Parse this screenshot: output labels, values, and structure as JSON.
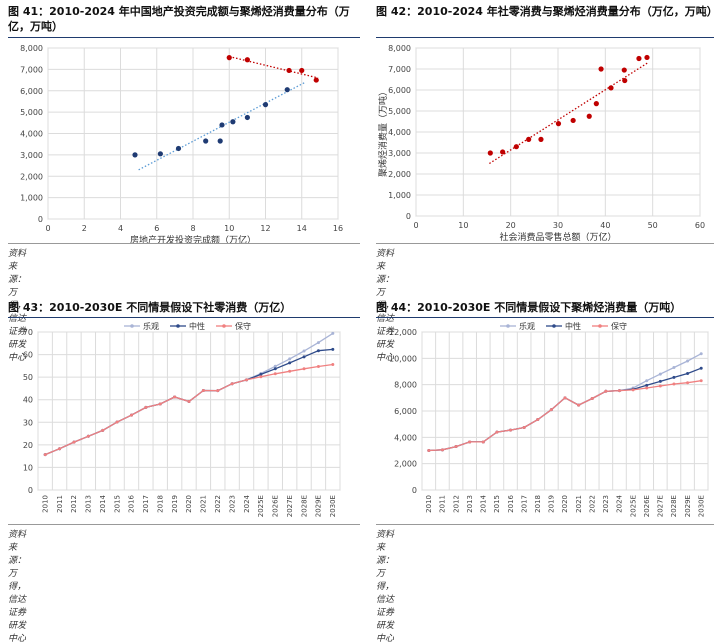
{
  "panels": [
    {
      "title": "图 41：2010-2024 年中国地产投资完成额与聚烯烃消费量分布（万亿，万吨）",
      "source": "资料来源：万得，信达证券研发中心"
    },
    {
      "title": "图 42：2010-2024 年社零消费与聚烯烃消费量分布（万亿，万吨）",
      "source": "资料来源：万得，信达证券研发中心"
    },
    {
      "title": "图 43：2010-2030E 不同情景假设下社零消费（万亿）",
      "source": "资料来源：万得，信达证券研发中心"
    },
    {
      "title": "图 44：2010-2030E 不同情景假设下聚烯烃消费量（万吨）",
      "source": "资料来源：万得，信达证券研发中心"
    }
  ],
  "chart_data": [
    {
      "type": "scatter",
      "title": "",
      "xlabel": "房地产开发投资完成额（万亿）",
      "ylabel": "",
      "xlim": [
        0,
        16
      ],
      "ylim": [
        0,
        8000
      ],
      "xticks": [
        "0",
        "2",
        "4",
        "6",
        "8",
        "10",
        "12",
        "14",
        "16"
      ],
      "yticks": [
        "0",
        "1,000",
        "2,000",
        "3,000",
        "4,000",
        "5,000",
        "6,000",
        "7,000",
        "8,000"
      ],
      "grid": true,
      "colors": {
        "series_a": "#1f3b73",
        "series_b": "#c00000",
        "trend_a": "#5b9bd5",
        "trend_b": "#c00000"
      },
      "series": [
        {
          "values": [
            [
              4.8,
              3000
            ],
            [
              6.2,
              3050
            ],
            [
              7.2,
              3300
            ],
            [
              8.7,
              3650
            ],
            [
              9.5,
              3650
            ],
            [
              9.6,
              4400
            ],
            [
              10.2,
              4550
            ],
            [
              11.0,
              4750
            ],
            [
              12.0,
              5350
            ],
            [
              13.2,
              6050
            ]
          ]
        },
        {
          "values": [
            [
              10.0,
              7550
            ],
            [
              11.0,
              7450
            ],
            [
              13.3,
              6950
            ],
            [
              14.0,
              6950
            ],
            [
              14.8,
              6500
            ]
          ]
        }
      ],
      "trendlines": [
        {
          "from": [
            5.0,
            2300
          ],
          "to": [
            14.2,
            6400
          ]
        },
        {
          "from": [
            10.0,
            7600
          ],
          "to": [
            14.9,
            6600
          ]
        }
      ]
    },
    {
      "type": "scatter",
      "title": "",
      "xlabel": "社会消费品零售总额（万亿）",
      "ylabel": "聚烯烃消费量（万吨）",
      "xlim": [
        0,
        60
      ],
      "ylim": [
        0,
        8000
      ],
      "xticks": [
        "0",
        "10",
        "20",
        "30",
        "40",
        "50",
        "60"
      ],
      "yticks": [
        "0",
        "1,000",
        "2,000",
        "3,000",
        "4,000",
        "5,000",
        "6,000",
        "7,000",
        "8,000"
      ],
      "grid": true,
      "colors": {
        "points": "#c00000",
        "trend": "#c00000"
      },
      "series": [
        {
          "values": [
            [
              15.7,
              3000
            ],
            [
              18.3,
              3050
            ],
            [
              21.2,
              3300
            ],
            [
              23.8,
              3650
            ],
            [
              26.4,
              3650
            ],
            [
              30.1,
              4400
            ],
            [
              33.2,
              4550
            ],
            [
              36.6,
              4750
            ],
            [
              38.1,
              5350
            ],
            [
              39.1,
              7000
            ],
            [
              41.2,
              6100
            ],
            [
              44.1,
              6450
            ],
            [
              44.0,
              6950
            ],
            [
              47.1,
              7500
            ],
            [
              48.8,
              7550
            ]
          ]
        }
      ],
      "trendlines": [
        {
          "from": [
            15.5,
            2500
          ],
          "to": [
            49.0,
            7300
          ]
        }
      ]
    },
    {
      "type": "line",
      "title": "",
      "xlabel": "",
      "ylabel": "",
      "ylim": [
        0,
        70
      ],
      "yticks": [
        "0",
        "10",
        "20",
        "30",
        "40",
        "50",
        "60",
        "70"
      ],
      "grid": true,
      "legend": "top-center",
      "categories": [
        "2010",
        "2011",
        "2012",
        "2013",
        "2014",
        "2015",
        "2016",
        "2017",
        "2018",
        "2019",
        "2020",
        "2021",
        "2022",
        "2023",
        "2024",
        "2025E",
        "2026E",
        "2027E",
        "2028E",
        "2029E",
        "2030E"
      ],
      "series": [
        {
          "name": "乐观",
          "color": "#a9b4d6",
          "values": [
            15.7,
            18.3,
            21.2,
            23.8,
            26.4,
            30.1,
            33.2,
            36.6,
            38.1,
            41.2,
            39.2,
            44.1,
            44.0,
            47.1,
            48.8,
            51.6,
            54.8,
            58.1,
            61.6,
            65.3,
            69.4
          ]
        },
        {
          "name": "中性",
          "color": "#2f4b8a",
          "values": [
            15.7,
            18.3,
            21.2,
            23.8,
            26.4,
            30.1,
            33.2,
            36.6,
            38.1,
            41.2,
            39.2,
            44.1,
            44.0,
            47.1,
            48.8,
            51.2,
            53.7,
            56.3,
            59.0,
            61.7,
            62.3
          ]
        },
        {
          "name": "保守",
          "color": "#f08080",
          "values": [
            15.7,
            18.3,
            21.2,
            23.8,
            26.4,
            30.1,
            33.2,
            36.6,
            38.1,
            41.2,
            39.2,
            44.1,
            44.0,
            47.1,
            48.8,
            50.2,
            51.5,
            52.6,
            53.7,
            54.7,
            55.6
          ]
        }
      ]
    },
    {
      "type": "line",
      "title": "",
      "xlabel": "",
      "ylabel": "",
      "ylim": [
        0,
        12000
      ],
      "yticks": [
        "0",
        "2,000",
        "4,000",
        "6,000",
        "8,000",
        "10,000",
        "12,000"
      ],
      "grid": true,
      "legend": "top-center",
      "categories": [
        "2010",
        "2011",
        "2012",
        "2013",
        "2014",
        "2015",
        "2016",
        "2017",
        "2018",
        "2019",
        "2020",
        "2021",
        "2022",
        "2023",
        "2024",
        "2025E",
        "2026E",
        "2027E",
        "2028E",
        "2029E",
        "2030E"
      ],
      "series": [
        {
          "name": "乐观",
          "color": "#a9b4d6",
          "values": [
            3000,
            3050,
            3300,
            3650,
            3650,
            4400,
            4550,
            4750,
            5350,
            6100,
            7000,
            6450,
            6950,
            7500,
            7550,
            7750,
            8300,
            8800,
            9300,
            9800,
            10350
          ]
        },
        {
          "name": "中性",
          "color": "#2f4b8a",
          "values": [
            3000,
            3050,
            3300,
            3650,
            3650,
            4400,
            4550,
            4750,
            5350,
            6100,
            7000,
            6450,
            6950,
            7500,
            7550,
            7650,
            7950,
            8250,
            8550,
            8850,
            9250
          ]
        },
        {
          "name": "保守",
          "color": "#f08080",
          "values": [
            3000,
            3050,
            3300,
            3650,
            3650,
            4400,
            4550,
            4750,
            5350,
            6100,
            7000,
            6450,
            6950,
            7500,
            7550,
            7600,
            7750,
            7900,
            8050,
            8150,
            8300
          ]
        }
      ]
    }
  ]
}
